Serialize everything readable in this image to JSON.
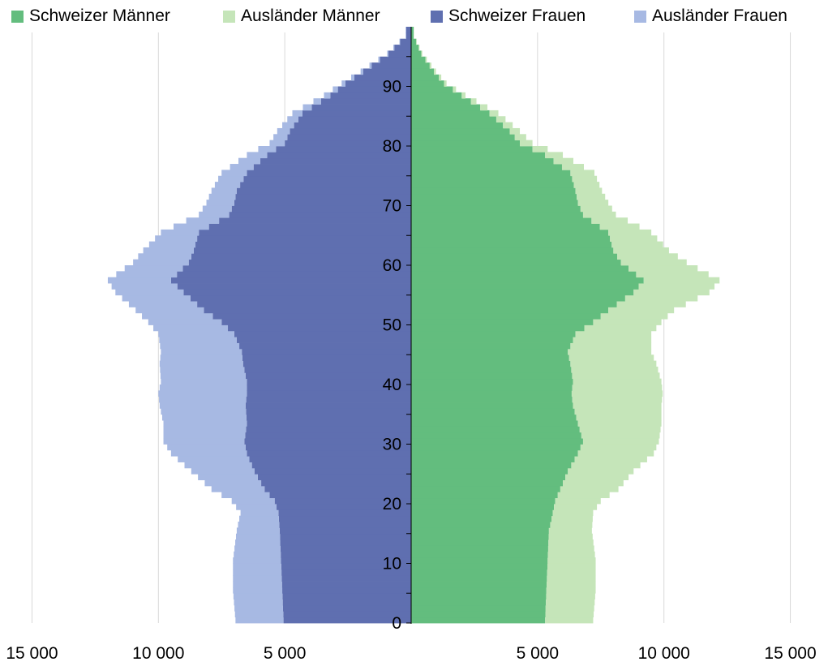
{
  "chart_data": {
    "type": "bar",
    "orientation": "horizontal",
    "variant": "population-pyramid",
    "xlim": [
      -15000,
      15000
    ],
    "ylim": [
      0,
      99
    ],
    "x_ticks": [
      -15000,
      -10000,
      -5000,
      5000,
      10000,
      15000
    ],
    "x_tick_labels": [
      "15 000",
      "10 000",
      "5 000",
      "5 000",
      "10 000",
      "15 000"
    ],
    "y_ticks": [
      0,
      10,
      20,
      30,
      40,
      50,
      60,
      70,
      80,
      90
    ],
    "y_tick_labels": [
      "0",
      "10",
      "20",
      "30",
      "40",
      "50",
      "60",
      "70",
      "80",
      "90"
    ],
    "grid": true,
    "legend_position": "top",
    "legend": [
      {
        "label": "Schweizer Männer",
        "color": "#63bd7e"
      },
      {
        "label": "Ausländer Männer",
        "color": "#c5e5b9"
      },
      {
        "label": "Schweizer Frauen",
        "color": "#5f6fb0"
      },
      {
        "label": "Ausländer Frauen",
        "color": "#a7b9e3"
      }
    ],
    "age_points": [
      0,
      5,
      10,
      15,
      18,
      20,
      22,
      25,
      28,
      30,
      33,
      36,
      38,
      40,
      43,
      45,
      48,
      50,
      52,
      55,
      57,
      60,
      62,
      65,
      68,
      70,
      72,
      75,
      78,
      80,
      82,
      85,
      88,
      90,
      92,
      95,
      98
    ],
    "series": [
      {
        "name": "Schweizer Männer",
        "side": "right",
        "color": "#63bd7e",
        "values": [
          5300,
          5350,
          5400,
          5450,
          5600,
          5700,
          5900,
          6200,
          6600,
          6800,
          6600,
          6400,
          6350,
          6400,
          6300,
          6200,
          6500,
          7200,
          7800,
          8800,
          9200,
          8300,
          8000,
          7800,
          6800,
          6600,
          6500,
          6300,
          5300,
          4300,
          3900,
          3100,
          2000,
          1300,
          900,
          400,
          100
        ]
      },
      {
        "name": "Ausländer Männer",
        "side": "right",
        "color": "#c5e5b9",
        "values": [
          1900,
          1950,
          1900,
          1700,
          1600,
          1800,
          2300,
          2600,
          3000,
          3000,
          3300,
          3500,
          3600,
          3500,
          3400,
          3300,
          3000,
          2700,
          2600,
          3000,
          3000,
          2600,
          2200,
          1700,
          1300,
          1200,
          1050,
          950,
          700,
          500,
          400,
          350,
          150,
          100,
          80,
          40,
          10
        ]
      },
      {
        "name": "Schweizer Frauen",
        "side": "left",
        "color": "#5f6fb0",
        "values": [
          5050,
          5100,
          5150,
          5200,
          5250,
          5400,
          5800,
          6200,
          6500,
          6600,
          6500,
          6550,
          6500,
          6500,
          6650,
          6700,
          7000,
          7500,
          8200,
          9000,
          9500,
          8800,
          8600,
          8400,
          7200,
          7000,
          6900,
          6500,
          5700,
          5000,
          4800,
          4300,
          3200,
          2600,
          1900,
          900,
          200
        ]
      },
      {
        "name": "Ausländer Frauen",
        "side": "left",
        "color": "#a7b9e3",
        "values": [
          1900,
          1950,
          1900,
          1700,
          1500,
          1700,
          2100,
          2500,
          3000,
          3200,
          3300,
          3400,
          3500,
          3400,
          3300,
          3200,
          3000,
          2900,
          2700,
          2700,
          2500,
          2200,
          2000,
          1500,
          1200,
          1100,
          1000,
          1000,
          800,
          600,
          500,
          400,
          250,
          150,
          100,
          50,
          20
        ]
      }
    ]
  }
}
